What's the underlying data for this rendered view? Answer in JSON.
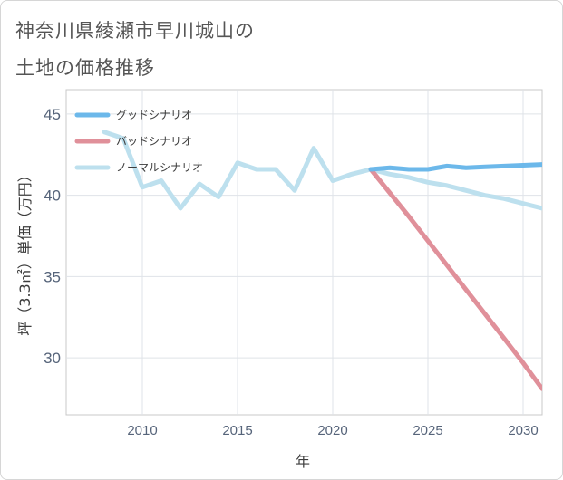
{
  "title": {
    "line1": "神奈川県綾瀬市早川城山の",
    "line2": "土地の価格推移"
  },
  "chart_data": {
    "type": "line",
    "xlabel": "年",
    "ylabel": "坪（3.3㎡）単価（万円）",
    "xlim": [
      2006,
      2031
    ],
    "ylim": [
      26.5,
      46.5
    ],
    "xticks": [
      2010,
      2015,
      2020,
      2025,
      2030
    ],
    "yticks": [
      30,
      35,
      40,
      45
    ],
    "grid": true,
    "legend_position": "top-left",
    "series": [
      {
        "name": "グッドシナリオ",
        "color": "#6cb8ea",
        "points": [
          [
            2022,
            41.6
          ],
          [
            2023,
            41.7
          ],
          [
            2024,
            41.6
          ],
          [
            2025,
            41.6
          ],
          [
            2026,
            41.8
          ],
          [
            2027,
            41.7
          ],
          [
            2028,
            41.75
          ],
          [
            2029,
            41.8
          ],
          [
            2030,
            41.85
          ],
          [
            2031,
            41.9
          ]
        ]
      },
      {
        "name": "バッドシナリオ",
        "color": "#e0909a",
        "points": [
          [
            2022,
            41.6
          ],
          [
            2023,
            40.15
          ],
          [
            2024,
            38.7
          ],
          [
            2025,
            37.2
          ],
          [
            2026,
            35.7
          ],
          [
            2027,
            34.2
          ],
          [
            2028,
            32.7
          ],
          [
            2029,
            31.2
          ],
          [
            2030,
            29.7
          ],
          [
            2031,
            28.1
          ]
        ]
      },
      {
        "name": "ノーマルシナリオ",
        "color": "#bde0ee",
        "points": [
          [
            2008,
            43.9
          ],
          [
            2009,
            43.5
          ],
          [
            2010,
            40.5
          ],
          [
            2011,
            40.9
          ],
          [
            2012,
            39.2
          ],
          [
            2013,
            40.7
          ],
          [
            2014,
            39.9
          ],
          [
            2015,
            42.0
          ],
          [
            2016,
            41.6
          ],
          [
            2017,
            41.6
          ],
          [
            2018,
            40.3
          ],
          [
            2019,
            42.9
          ],
          [
            2020,
            40.9
          ],
          [
            2021,
            41.3
          ],
          [
            2022,
            41.6
          ],
          [
            2023,
            41.3
          ],
          [
            2024,
            41.1
          ],
          [
            2025,
            40.8
          ],
          [
            2026,
            40.6
          ],
          [
            2027,
            40.3
          ],
          [
            2028,
            40.0
          ],
          [
            2029,
            39.8
          ],
          [
            2030,
            39.5
          ],
          [
            2031,
            39.2
          ]
        ]
      }
    ]
  }
}
